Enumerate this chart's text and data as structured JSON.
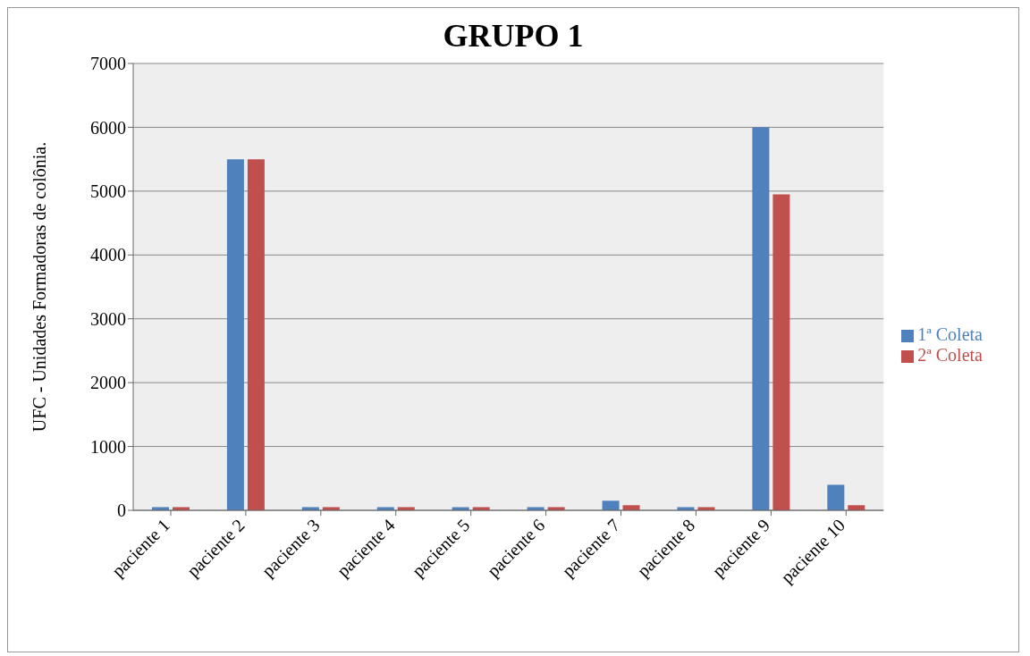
{
  "chart_data": {
    "type": "bar",
    "title": "GRUPO 1",
    "ylabel": "UFC - Unidades Formadoras de colônia.",
    "categories": [
      "paciente 1",
      "paciente 2",
      "paciente 3",
      "paciente 4",
      "paciente 5",
      "paciente 6",
      "paciente 7",
      "paciente 8",
      "paciente 9",
      "paciente 10"
    ],
    "series": [
      {
        "name": "1ª Coleta",
        "color": "#4f81bd",
        "values": [
          50,
          5500,
          50,
          50,
          50,
          50,
          150,
          50,
          6000,
          400
        ]
      },
      {
        "name": "2ª Coleta",
        "color": "#c0504d",
        "values": [
          50,
          5500,
          50,
          50,
          50,
          50,
          80,
          50,
          4950,
          80
        ]
      }
    ],
    "ylim": [
      0,
      7000
    ],
    "yticks": [
      0,
      1000,
      2000,
      3000,
      4000,
      5000,
      6000,
      7000
    ],
    "grid": "y",
    "legend": "right"
  }
}
